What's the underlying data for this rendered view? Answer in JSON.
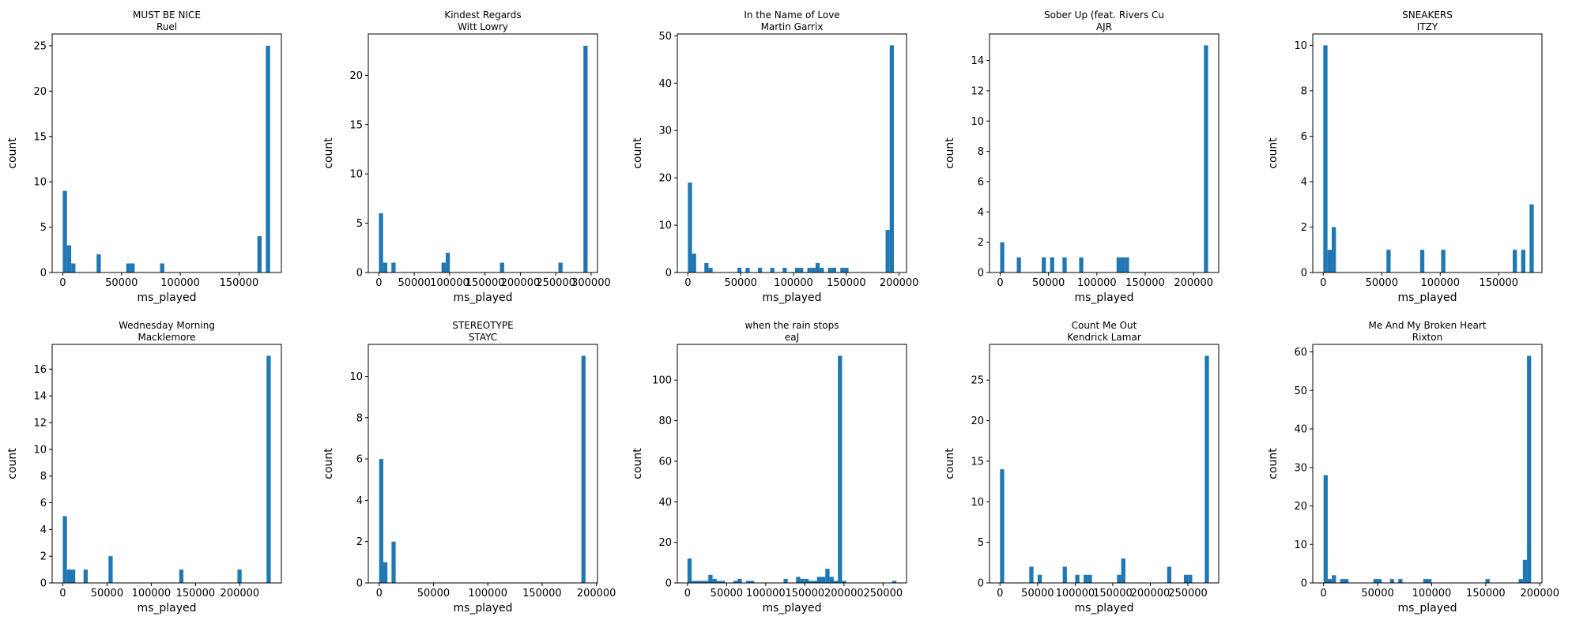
{
  "figure": {
    "bar_color": "#1f77b4"
  },
  "chart_data": [
    {
      "type": "bar",
      "title_line1": "MUST BE NICE",
      "title_line2": "Ruel",
      "xlabel": "ms_played",
      "ylabel": "count",
      "xlim": [
        -9000,
        186000
      ],
      "ylim": [
        0,
        26.3
      ],
      "xticks": [
        0,
        50000,
        100000,
        150000
      ],
      "yticks": [
        0,
        5,
        10,
        15,
        20,
        25
      ],
      "bins": [
        [
          0,
          3600,
          9
        ],
        [
          3600,
          7200,
          3
        ],
        [
          7200,
          10800,
          1
        ],
        [
          28800,
          32400,
          2
        ],
        [
          54000,
          57600,
          1
        ],
        [
          57600,
          61200,
          1
        ],
        [
          82800,
          86400,
          1
        ],
        [
          165600,
          169200,
          4
        ],
        [
          172800,
          176400,
          25
        ]
      ]
    },
    {
      "type": "bar",
      "title_line1": "Kindest Regards",
      "title_line2": "Witt Lowry",
      "xlabel": "ms_played",
      "ylabel": "count",
      "xlim": [
        -15000,
        309000
      ],
      "ylim": [
        0,
        24.2
      ],
      "xticks": [
        0,
        50000,
        100000,
        150000,
        200000,
        250000,
        300000
      ],
      "yticks": [
        0,
        5,
        10,
        15,
        20
      ],
      "bins": [
        [
          0,
          5900,
          6
        ],
        [
          5900,
          11800,
          1
        ],
        [
          17700,
          23600,
          1
        ],
        [
          88500,
          94400,
          1
        ],
        [
          94400,
          100300,
          2
        ],
        [
          171100,
          177000,
          1
        ],
        [
          253700,
          259600,
          1
        ],
        [
          289100,
          295000,
          23
        ]
      ]
    },
    {
      "type": "bar",
      "title_line1": "In the Name of Love",
      "title_line2": "Martin Garrix",
      "xlabel": "ms_played",
      "ylabel": "count",
      "xlim": [
        -10000,
        207000
      ],
      "ylim": [
        0,
        50.4
      ],
      "xticks": [
        0,
        50000,
        100000,
        150000,
        200000
      ],
      "yticks": [
        0,
        10,
        20,
        30,
        40,
        50
      ],
      "bins": [
        [
          0,
          3900,
          19
        ],
        [
          3900,
          7800,
          4
        ],
        [
          15600,
          19500,
          2
        ],
        [
          19500,
          23400,
          1
        ],
        [
          46800,
          50700,
          1
        ],
        [
          54600,
          58500,
          1
        ],
        [
          66300,
          70200,
          1
        ],
        [
          78000,
          81900,
          1
        ],
        [
          89700,
          93600,
          1
        ],
        [
          101400,
          105300,
          1
        ],
        [
          105300,
          109200,
          1
        ],
        [
          113100,
          117000,
          1
        ],
        [
          117000,
          120900,
          1
        ],
        [
          120900,
          124800,
          2
        ],
        [
          124800,
          128700,
          1
        ],
        [
          132600,
          136500,
          1
        ],
        [
          136500,
          140400,
          1
        ],
        [
          144300,
          148200,
          1
        ],
        [
          148200,
          152100,
          1
        ],
        [
          187200,
          191100,
          9
        ],
        [
          191100,
          195000,
          48
        ]
      ]
    },
    {
      "type": "bar",
      "title_line1": "Sober Up (feat. Rivers Cu",
      "title_line2": "AJR",
      "xlabel": "ms_played",
      "ylabel": "count",
      "xlim": [
        -11000,
        226000
      ],
      "ylim": [
        0,
        15.75
      ],
      "xticks": [
        0,
        50000,
        100000,
        150000,
        200000
      ],
      "yticks": [
        0,
        2,
        4,
        6,
        8,
        10,
        12,
        14
      ],
      "bins": [
        [
          0,
          4300,
          2
        ],
        [
          17200,
          21500,
          1
        ],
        [
          43000,
          47300,
          1
        ],
        [
          51600,
          55900,
          1
        ],
        [
          64500,
          68800,
          1
        ],
        [
          81700,
          86000,
          1
        ],
        [
          120400,
          124700,
          1
        ],
        [
          124700,
          129000,
          1
        ],
        [
          129000,
          133300,
          1
        ],
        [
          210700,
          215000,
          15
        ]
      ]
    },
    {
      "type": "bar",
      "title_line1": "SNEAKERS",
      "title_line2": "ITZY",
      "xlabel": "ms_played",
      "ylabel": "count",
      "xlim": [
        -9000,
        187000
      ],
      "ylim": [
        0,
        10.5
      ],
      "xticks": [
        0,
        50000,
        100000,
        150000
      ],
      "yticks": [
        0,
        2,
        4,
        6,
        8,
        10
      ],
      "bins": [
        [
          0,
          3600,
          10
        ],
        [
          3600,
          7200,
          1
        ],
        [
          7200,
          10800,
          2
        ],
        [
          54000,
          57600,
          1
        ],
        [
          82800,
          86400,
          1
        ],
        [
          100800,
          104400,
          1
        ],
        [
          162000,
          165600,
          1
        ],
        [
          169200,
          172800,
          1
        ],
        [
          176400,
          180000,
          3
        ]
      ]
    },
    {
      "type": "bar",
      "title_line1": "Wednesday Morning",
      "title_line2": "Macklemore",
      "xlabel": "ms_played",
      "ylabel": "count",
      "xlim": [
        -12000,
        247000
      ],
      "ylim": [
        0,
        17.85
      ],
      "xticks": [
        0,
        50000,
        100000,
        150000,
        200000
      ],
      "yticks": [
        0,
        2,
        4,
        6,
        8,
        10,
        12,
        14,
        16
      ],
      "bins": [
        [
          0,
          4700,
          5
        ],
        [
          4700,
          9400,
          1
        ],
        [
          9400,
          14100,
          1
        ],
        [
          23500,
          28200,
          1
        ],
        [
          51700,
          56400,
          2
        ],
        [
          131600,
          136300,
          1
        ],
        [
          197400,
          202100,
          1
        ],
        [
          230300,
          235000,
          17
        ]
      ]
    },
    {
      "type": "bar",
      "title_line1": "STEREOTYPE",
      "title_line2": "STAYC",
      "xlabel": "ms_played",
      "ylabel": "count",
      "xlim": [
        -10000,
        201000
      ],
      "ylim": [
        0,
        11.55
      ],
      "xticks": [
        0,
        50000,
        100000,
        150000,
        200000
      ],
      "yticks": [
        0,
        2,
        4,
        6,
        8,
        10
      ],
      "bins": [
        [
          0,
          3800,
          6
        ],
        [
          3800,
          7600,
          1
        ],
        [
          11400,
          15200,
          2
        ],
        [
          186200,
          190000,
          11
        ]
      ]
    },
    {
      "type": "bar",
      "title_line1": "when the rain stops",
      "title_line2": "eaJ",
      "xlabel": "ms_played",
      "ylabel": "count",
      "xlim": [
        -13000,
        280000
      ],
      "ylim": [
        0,
        117.6
      ],
      "xticks": [
        0,
        50000,
        100000,
        150000,
        200000,
        250000
      ],
      "yticks": [
        0,
        20,
        40,
        60,
        80,
        100
      ],
      "bins": [
        [
          0,
          5340,
          12
        ],
        [
          5340,
          10680,
          1
        ],
        [
          10680,
          16020,
          1
        ],
        [
          16020,
          21360,
          1
        ],
        [
          21360,
          26700,
          1
        ],
        [
          26700,
          32040,
          4
        ],
        [
          32040,
          37380,
          2
        ],
        [
          37380,
          42720,
          1
        ],
        [
          42720,
          48060,
          1
        ],
        [
          58740,
          64080,
          1
        ],
        [
          64080,
          69420,
          2
        ],
        [
          74760,
          80100,
          1
        ],
        [
          80100,
          85440,
          1
        ],
        [
          122820,
          128160,
          2
        ],
        [
          138840,
          144180,
          3
        ],
        [
          144180,
          149520,
          2
        ],
        [
          149520,
          154860,
          2
        ],
        [
          154860,
          160200,
          1
        ],
        [
          160200,
          165540,
          1
        ],
        [
          165540,
          170880,
          3
        ],
        [
          170880,
          176220,
          3
        ],
        [
          176220,
          181560,
          7
        ],
        [
          181560,
          186900,
          3
        ],
        [
          186900,
          192240,
          1
        ],
        [
          192240,
          197580,
          112
        ],
        [
          197580,
          202920,
          1
        ],
        [
          261660,
          267000,
          1
        ]
      ]
    },
    {
      "type": "bar",
      "title_line1": "Count Me Out",
      "title_line2": "Kendrick Lamar",
      "xlabel": "ms_played",
      "ylabel": "count",
      "xlim": [
        -14000,
        291000
      ],
      "ylim": [
        0,
        29.4
      ],
      "xticks": [
        0,
        50000,
        100000,
        150000,
        200000,
        250000
      ],
      "yticks": [
        0,
        5,
        10,
        15,
        20,
        25
      ],
      "bins": [
        [
          0,
          5560,
          14
        ],
        [
          38920,
          44480,
          2
        ],
        [
          50040,
          55600,
          1
        ],
        [
          83400,
          88960,
          2
        ],
        [
          100080,
          105640,
          1
        ],
        [
          111200,
          116760,
          1
        ],
        [
          116760,
          122320,
          1
        ],
        [
          155680,
          161240,
          1
        ],
        [
          161240,
          166800,
          3
        ],
        [
          222400,
          227960,
          2
        ],
        [
          244640,
          250200,
          1
        ],
        [
          250200,
          255760,
          1
        ],
        [
          272440,
          278000,
          28
        ]
      ]
    },
    {
      "type": "bar",
      "title_line1": "Me And My Broken Heart",
      "title_line2": "Rixton",
      "xlabel": "ms_played",
      "ylabel": "count",
      "xlim": [
        -10000,
        202000
      ],
      "ylim": [
        0,
        61.95
      ],
      "xticks": [
        0,
        50000,
        100000,
        150000,
        200000
      ],
      "yticks": [
        0,
        10,
        20,
        30,
        40,
        50,
        60
      ],
      "bins": [
        [
          0,
          3840,
          28
        ],
        [
          3840,
          7680,
          1
        ],
        [
          7680,
          11520,
          2
        ],
        [
          15360,
          19200,
          1
        ],
        [
          19200,
          23040,
          1
        ],
        [
          46080,
          49920,
          1
        ],
        [
          49920,
          53760,
          1
        ],
        [
          61440,
          65280,
          1
        ],
        [
          69120,
          72960,
          1
        ],
        [
          92160,
          96000,
          1
        ],
        [
          96000,
          99840,
          1
        ],
        [
          149760,
          153600,
          1
        ],
        [
          180480,
          184320,
          1
        ],
        [
          184320,
          188160,
          6
        ],
        [
          188160,
          192000,
          59
        ]
      ]
    }
  ]
}
